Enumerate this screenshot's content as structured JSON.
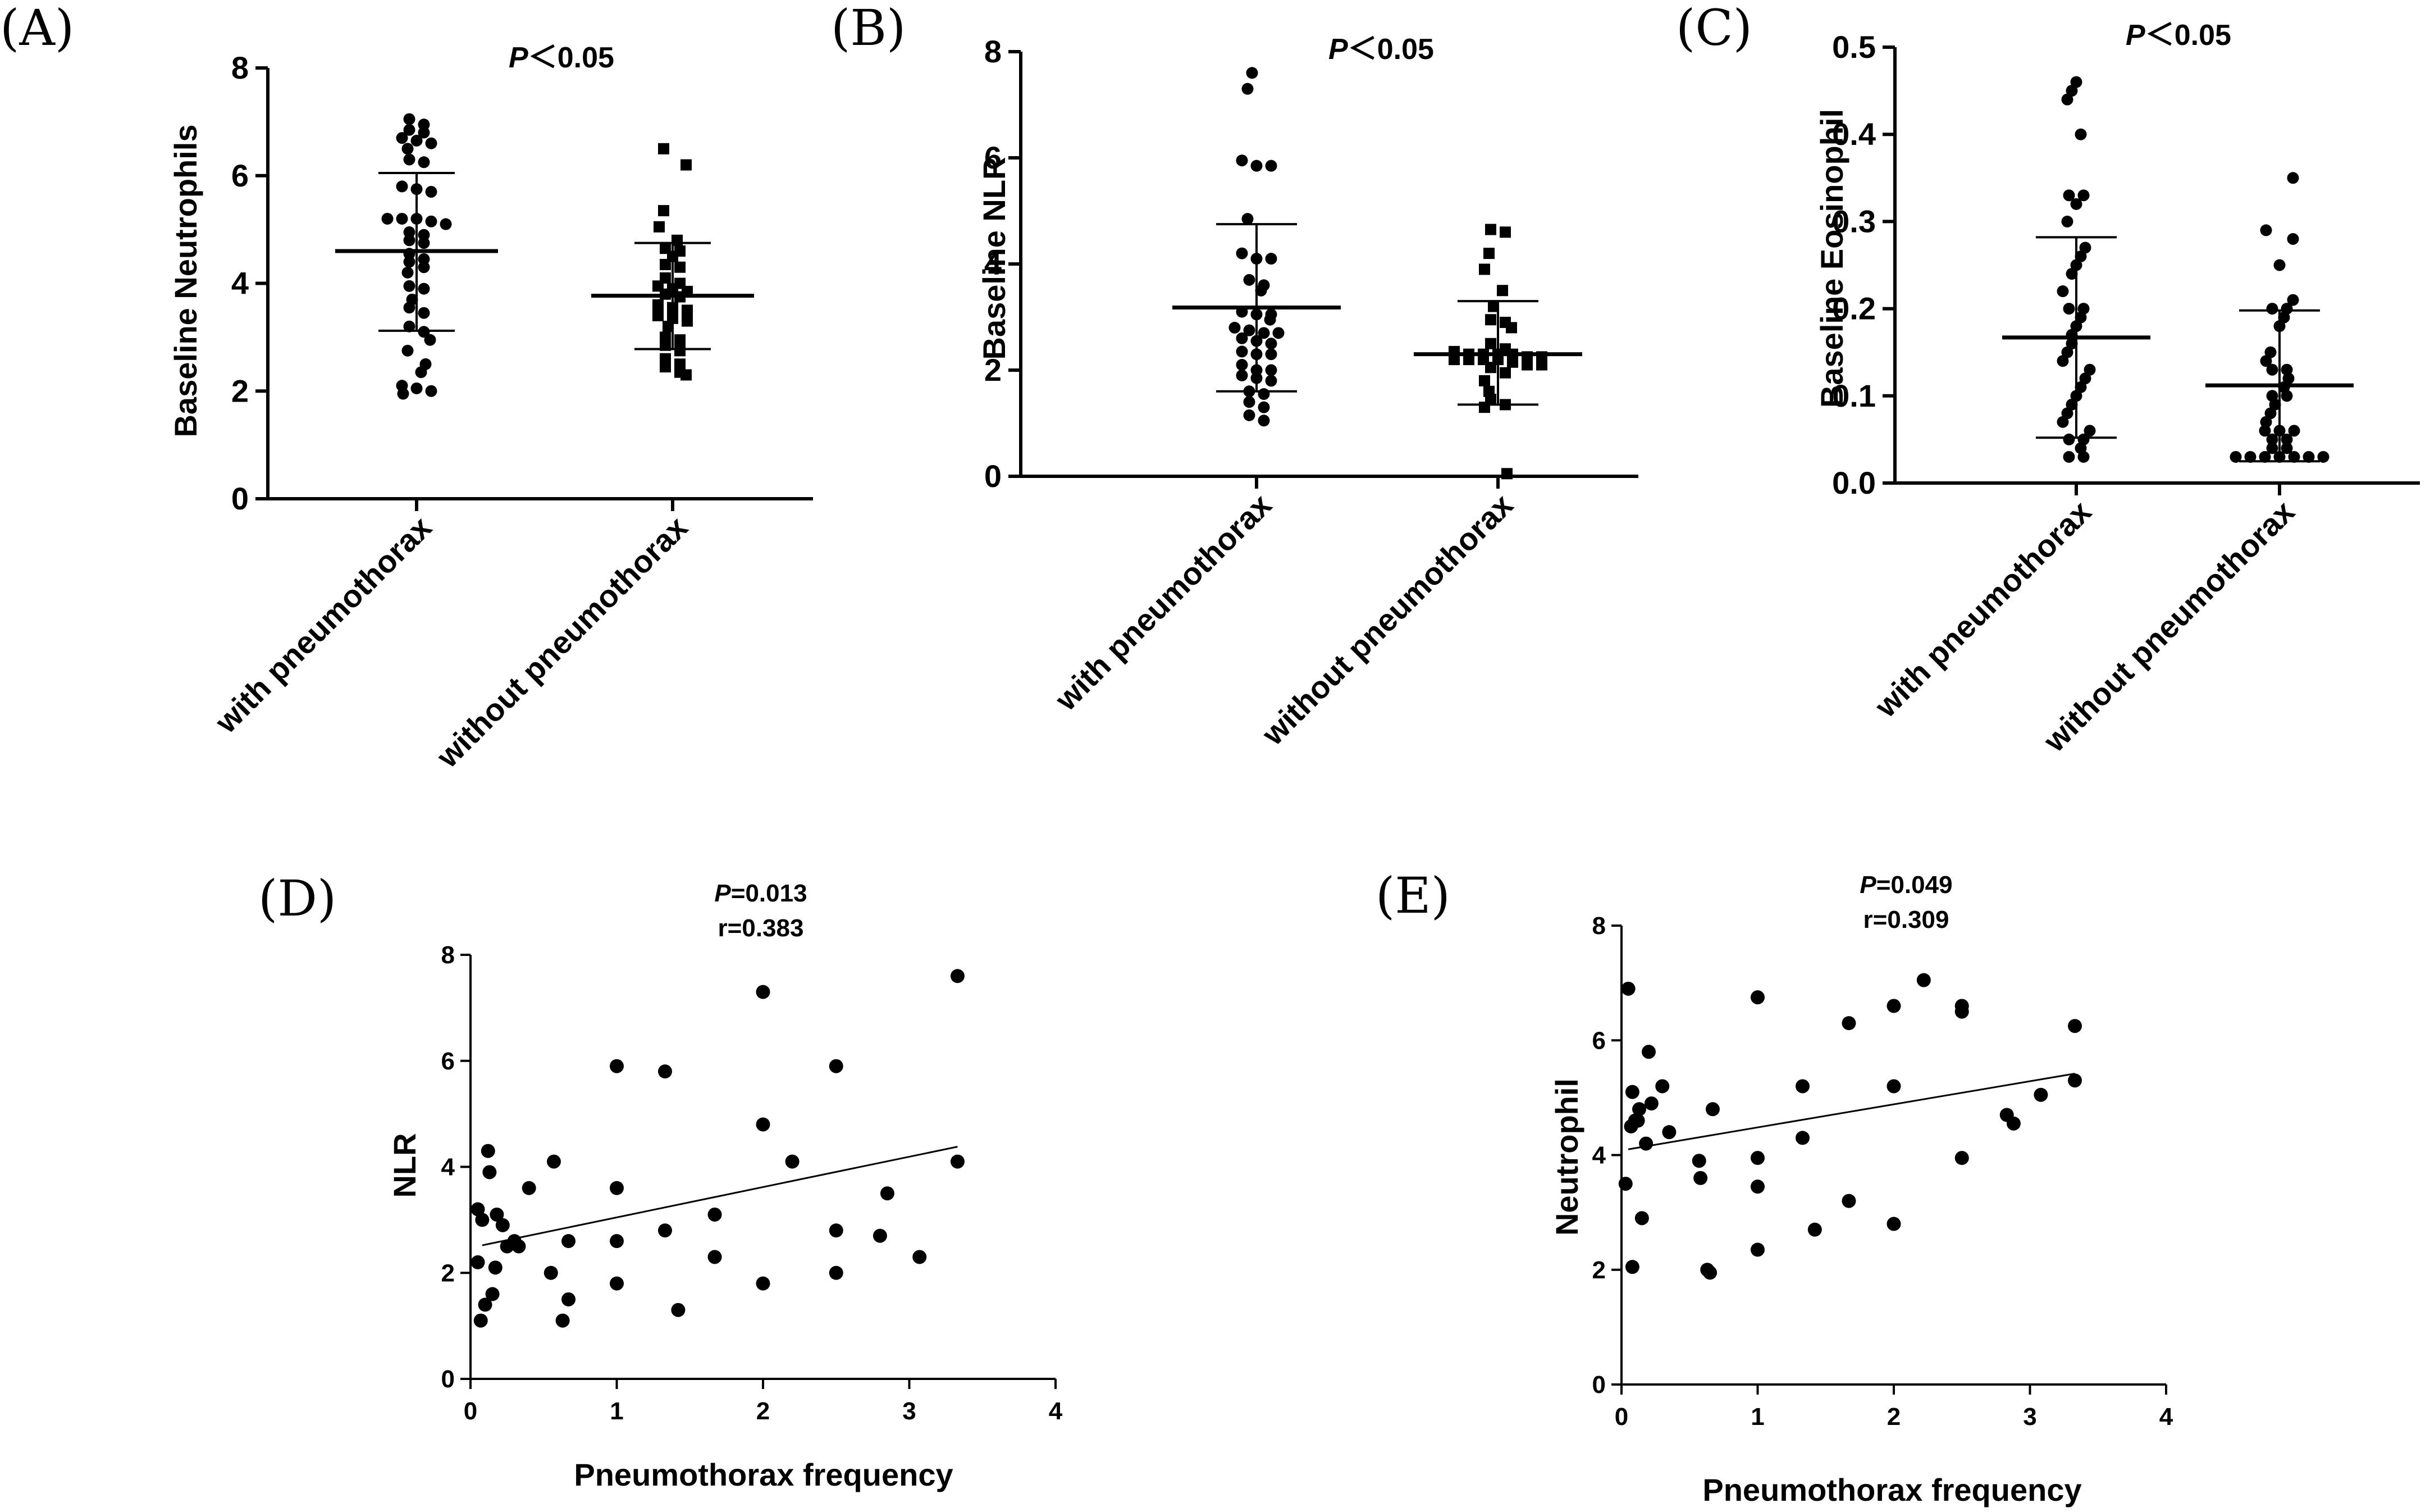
{
  "chart_data": [
    {
      "type": "scatter",
      "panel_label": "(A)",
      "ylabel": "Baseline Neutrophils",
      "ylim": [
        0,
        8
      ],
      "yticks": [
        "0",
        "2",
        "4",
        "6",
        "8"
      ],
      "categories": [
        "with pneumothorax",
        "without pneumothorax"
      ],
      "annotation": {
        "p": "P",
        "rest": "＜0.05"
      },
      "groups": [
        {
          "name": "with pneumothorax",
          "marker": "circle",
          "mean": 4.6,
          "sd_upper": 6.05,
          "sd_lower": 3.12,
          "values": [
            7.05,
            6.95,
            6.85,
            6.8,
            6.7,
            6.65,
            6.6,
            6.5,
            6.3,
            6.25,
            5.8,
            5.75,
            5.7,
            5.2,
            5.2,
            5.2,
            5.15,
            5.1,
            4.95,
            4.9,
            4.8,
            4.75,
            4.55,
            4.45,
            4.4,
            4.3,
            4.2,
            3.95,
            3.9,
            3.7,
            3.55,
            3.45,
            3.2,
            3.1,
            2.95,
            2.75,
            2.5,
            2.35,
            2.1,
            2.05,
            2.0,
            1.95
          ]
        },
        {
          "name": "without pneumothorax",
          "marker": "square",
          "mean": 3.77,
          "sd_upper": 4.75,
          "sd_lower": 2.78,
          "values": [
            6.5,
            6.2,
            5.35,
            5.05,
            4.8,
            4.65,
            4.6,
            4.5,
            4.35,
            4.3,
            4.1,
            4.0,
            3.95,
            3.9,
            3.85,
            3.8,
            3.75,
            3.6,
            3.55,
            3.5,
            3.4,
            3.35,
            3.3,
            3.2,
            3.0,
            2.95,
            2.85,
            2.75,
            2.6,
            2.5,
            2.45,
            2.35,
            2.3
          ]
        }
      ]
    },
    {
      "type": "scatter",
      "panel_label": "(B)",
      "ylabel": "Baseline NLR",
      "ylim": [
        0,
        8
      ],
      "yticks": [
        "0",
        "2",
        "4",
        "6",
        "8"
      ],
      "categories": [
        "with pneumothorax",
        "without pneumothorax"
      ],
      "annotation": {
        "p": "P",
        "rest": "＜0.05"
      },
      "groups": [
        {
          "name": "with pneumothorax",
          "marker": "circle",
          "mean": 3.18,
          "sd_upper": 4.75,
          "sd_lower": 1.6,
          "values": [
            7.6,
            7.3,
            5.95,
            5.85,
            5.85,
            4.85,
            4.2,
            4.1,
            4.1,
            3.7,
            3.6,
            3.5,
            3.1,
            3.05,
            3.05,
            2.95,
            2.8,
            2.75,
            2.7,
            2.7,
            2.6,
            2.55,
            2.5,
            2.35,
            2.3,
            2.3,
            2.1,
            2.0,
            2.0,
            1.9,
            1.85,
            1.8,
            1.6,
            1.55,
            1.4,
            1.3,
            1.15,
            1.05
          ]
        },
        {
          "name": "without pneumothorax",
          "marker": "square",
          "mean": 2.3,
          "sd_upper": 3.3,
          "sd_lower": 1.35,
          "values": [
            4.65,
            4.6,
            4.2,
            3.9,
            3.5,
            3.2,
            2.95,
            2.9,
            2.8,
            2.5,
            2.4,
            2.35,
            2.3,
            2.3,
            2.3,
            2.3,
            2.25,
            2.25,
            2.2,
            2.2,
            2.2,
            2.2,
            2.15,
            2.1,
            2.1,
            2.05,
            1.95,
            1.8,
            1.6,
            1.45,
            1.35,
            1.3,
            0.05
          ]
        }
      ]
    },
    {
      "type": "scatter",
      "panel_label": "(C)",
      "ylabel": "Baseline Eosinophil",
      "ylim": [
        0,
        0.5
      ],
      "yticks": [
        "0.0",
        "0.1",
        "0.2",
        "0.3",
        "0.4",
        "0.5"
      ],
      "categories": [
        "with pneumothorax",
        "without pneumothorax"
      ],
      "annotation": {
        "p": "P",
        "rest": "＜0.05"
      },
      "groups": [
        {
          "name": "with pneumothorax",
          "marker": "circle",
          "mean": 0.167,
          "sd_upper": 0.282,
          "sd_lower": 0.052,
          "values": [
            0.46,
            0.45,
            0.44,
            0.4,
            0.33,
            0.33,
            0.32,
            0.3,
            0.27,
            0.26,
            0.25,
            0.24,
            0.22,
            0.2,
            0.2,
            0.19,
            0.18,
            0.17,
            0.16,
            0.15,
            0.14,
            0.13,
            0.12,
            0.11,
            0.1,
            0.09,
            0.08,
            0.07,
            0.06,
            0.05,
            0.05,
            0.04,
            0.03,
            0.03
          ]
        },
        {
          "name": "without pneumothorax",
          "marker": "circle",
          "mean": 0.112,
          "sd_upper": 0.198,
          "sd_lower": 0.025,
          "values": [
            0.35,
            0.29,
            0.28,
            0.25,
            0.21,
            0.2,
            0.2,
            0.19,
            0.18,
            0.15,
            0.14,
            0.13,
            0.13,
            0.12,
            0.11,
            0.1,
            0.1,
            0.09,
            0.08,
            0.07,
            0.06,
            0.06,
            0.06,
            0.05,
            0.05,
            0.04,
            0.04,
            0.03,
            0.03,
            0.03,
            0.03,
            0.03,
            0.03,
            0.03
          ]
        }
      ]
    },
    {
      "type": "scatter",
      "panel_label": "(D)",
      "xlabel": "Pneumothorax frequency",
      "ylabel": "NLR",
      "xlim": [
        0,
        4
      ],
      "ylim": [
        0,
        8
      ],
      "xticks": [
        "0",
        "1",
        "2",
        "3",
        "4"
      ],
      "yticks": [
        "0",
        "2",
        "4",
        "6",
        "8"
      ],
      "annotation": {
        "p": "P",
        "p_rest": "=0.013",
        "r": "r=0.383"
      },
      "fit_line": {
        "x": [
          0.08,
          3.33
        ],
        "y": [
          2.52,
          4.38
        ]
      },
      "points": [
        [
          0.05,
          2.2
        ],
        [
          0.05,
          3.2
        ],
        [
          0.07,
          1.1
        ],
        [
          0.08,
          3.0
        ],
        [
          0.1,
          1.4
        ],
        [
          0.12,
          4.3
        ],
        [
          0.13,
          3.9
        ],
        [
          0.15,
          1.6
        ],
        [
          0.17,
          2.1
        ],
        [
          0.18,
          3.1
        ],
        [
          0.22,
          2.9
        ],
        [
          0.25,
          2.5
        ],
        [
          0.3,
          2.6
        ],
        [
          0.33,
          2.5
        ],
        [
          0.4,
          3.6
        ],
        [
          0.55,
          2.0
        ],
        [
          0.57,
          4.1
        ],
        [
          0.63,
          1.1
        ],
        [
          0.67,
          1.5
        ],
        [
          0.67,
          2.6
        ],
        [
          1.0,
          1.8
        ],
        [
          1.0,
          2.6
        ],
        [
          1.0,
          3.6
        ],
        [
          1.0,
          5.9
        ],
        [
          1.33,
          2.8
        ],
        [
          1.33,
          5.8
        ],
        [
          1.42,
          1.3
        ],
        [
          1.67,
          2.3
        ],
        [
          1.67,
          3.1
        ],
        [
          2.0,
          1.8
        ],
        [
          2.0,
          4.8
        ],
        [
          2.0,
          7.3
        ],
        [
          2.2,
          4.1
        ],
        [
          2.5,
          2.0
        ],
        [
          2.5,
          2.8
        ],
        [
          2.5,
          5.9
        ],
        [
          2.8,
          2.7
        ],
        [
          2.85,
          3.5
        ],
        [
          3.07,
          2.3
        ],
        [
          3.33,
          7.6
        ],
        [
          3.33,
          4.1
        ]
      ]
    },
    {
      "type": "scatter",
      "panel_label": "(E)",
      "xlabel": "Pneumothorax frequency",
      "ylabel": "Neutrophil",
      "xlim": [
        0,
        4
      ],
      "ylim": [
        0,
        8
      ],
      "xticks": [
        "0",
        "1",
        "2",
        "3",
        "4"
      ],
      "yticks": [
        "0",
        "2",
        "4",
        "6",
        "8"
      ],
      "annotation": {
        "p": "P",
        "p_rest": "=0.049",
        "r": "r=0.309"
      },
      "fit_line": {
        "x": [
          0.05,
          3.33
        ],
        "y": [
          4.1,
          5.42
        ]
      },
      "points": [
        [
          0.03,
          3.5
        ],
        [
          0.05,
          6.9
        ],
        [
          0.07,
          4.5
        ],
        [
          0.08,
          5.1
        ],
        [
          0.08,
          2.05
        ],
        [
          0.1,
          4.6
        ],
        [
          0.12,
          4.6
        ],
        [
          0.13,
          4.8
        ],
        [
          0.15,
          2.9
        ],
        [
          0.18,
          4.2
        ],
        [
          0.2,
          5.8
        ],
        [
          0.22,
          4.9
        ],
        [
          0.3,
          5.2
        ],
        [
          0.35,
          4.4
        ],
        [
          0.57,
          3.9
        ],
        [
          0.58,
          3.6
        ],
        [
          0.63,
          2.0
        ],
        [
          0.65,
          1.95
        ],
        [
          0.67,
          4.8
        ],
        [
          1.0,
          2.35
        ],
        [
          1.0,
          3.45
        ],
        [
          1.0,
          3.95
        ],
        [
          1.0,
          6.75
        ],
        [
          1.33,
          4.3
        ],
        [
          1.33,
          5.2
        ],
        [
          1.42,
          2.7
        ],
        [
          1.67,
          3.2
        ],
        [
          1.67,
          6.3
        ],
        [
          2.0,
          2.8
        ],
        [
          2.0,
          5.2
        ],
        [
          2.0,
          6.6
        ],
        [
          2.22,
          7.05
        ],
        [
          2.5,
          3.95
        ],
        [
          2.5,
          6.5
        ],
        [
          2.5,
          6.6
        ],
        [
          2.83,
          4.7
        ],
        [
          2.88,
          4.55
        ],
        [
          3.08,
          5.05
        ],
        [
          3.33,
          5.3
        ],
        [
          3.33,
          6.25
        ]
      ]
    }
  ]
}
